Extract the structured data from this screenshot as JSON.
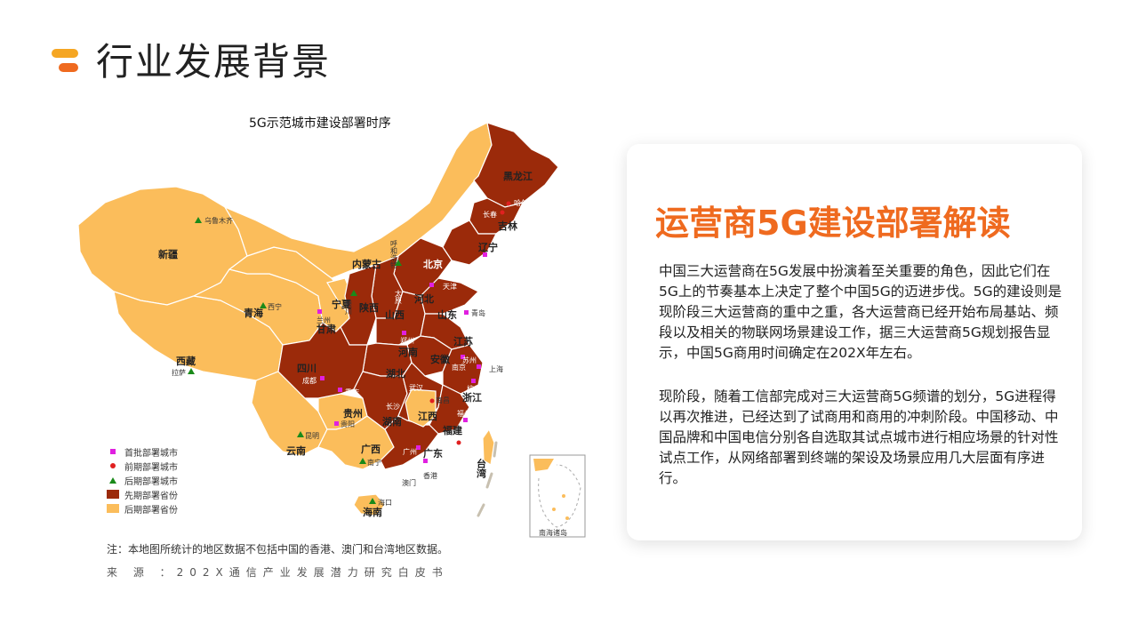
{
  "page": {
    "title": "行业发展背景"
  },
  "map": {
    "title": "5G示范城市建设部署时序",
    "colors": {
      "early_province": "#9b2a0a",
      "late_province": "#fbbd5b"
    },
    "provinces_early": [
      "黑龙江",
      "吉林",
      "辽宁",
      "北京",
      "天津",
      "河北",
      "山西",
      "陕西",
      "山东",
      "河南",
      "江苏",
      "安徽",
      "上海",
      "湖北",
      "四川",
      "重庆",
      "湖南",
      "江西",
      "浙江",
      "福建",
      "广东"
    ],
    "provinces_late": [
      "新疆",
      "西藏",
      "青海",
      "甘肃",
      "宁夏",
      "内蒙古",
      "贵州",
      "云南",
      "广西",
      "海南",
      "台湾"
    ],
    "labels": {
      "heilongjiang": "黑龙江",
      "jilin": "吉林",
      "liaoning": "辽宁",
      "beijing": "北京",
      "tianjin": "天津",
      "hebei": "河北",
      "shanxi": "山西",
      "shaanxi": "陕西",
      "shandong": "山东",
      "henan": "河南",
      "jiangsu": "江苏",
      "anhui": "安徽",
      "hubei": "湖北",
      "sichuan": "四川",
      "hunan": "湖南",
      "jiangxi": "江西",
      "zhejiang": "浙江",
      "fujian": "福建",
      "guangdong": "广东",
      "xinjiang": "新疆",
      "xizang": "西藏",
      "qinghai": "青海",
      "gansu": "甘肃",
      "ningxia": "宁夏",
      "neimenggu": "内蒙古",
      "guizhou": "贵州",
      "yunnan": "云南",
      "guangxi": "广西",
      "hainan": "海南",
      "taiwan": "台湾"
    },
    "cities": {
      "urumqi": "乌鲁木齐",
      "harbin": "哈尔滨",
      "changchun": "长春",
      "shenyang": "沈阳",
      "hohhot": "呼和浩特",
      "tianjin": "天津",
      "qingdao": "青岛",
      "xining": "西宁",
      "lanzhou": "兰州",
      "yinchuan": "银川",
      "taiyuan": "太原",
      "zhengzhou": "郑州",
      "hangzhou": "杭州",
      "shanghai": "上海",
      "suzhou": "苏州",
      "nanjing": "南京",
      "chengdu": "成都",
      "chongqing": "重庆",
      "wuhan": "武汉",
      "changsha": "长沙",
      "nanchang": "南昌",
      "fuzhou": "福州",
      "xiamen": "厦门",
      "guangzhou": "广州",
      "shenzhen": "深圳",
      "lhasa": "拉萨",
      "kunming": "昆明",
      "guiyang": "贵阳",
      "nanning": "南宁",
      "haikou": "海口",
      "hongkong": "香港",
      "macau": "澳门",
      "xian": "西安"
    },
    "inset_label": "南海诸岛",
    "legend": [
      {
        "symbol": "magenta-square-icon",
        "label": "首批部署城市",
        "color": "#e020e0"
      },
      {
        "symbol": "red-dot-icon",
        "label": "前期部署城市",
        "color": "#e02020"
      },
      {
        "symbol": "green-triangle-icon",
        "label": "后期部署城市",
        "color": "#1a8a1a"
      },
      {
        "symbol": "dark-swatch",
        "label": "先期部署省份",
        "color": "#9b2a0a"
      },
      {
        "symbol": "light-swatch",
        "label": "后期部署省份",
        "color": "#fbbd5b"
      }
    ],
    "note": "注：本地图所统计的地区数据不包括中国的香港、澳门和台湾地区数据。",
    "source": "来 源 ：202X通信产业发展潜力研究白皮书"
  },
  "card": {
    "title": "运营商5G建设部署解读",
    "paragraph1": "中国三大运营商在5G发展中扮演着至关重要的角色，因此它们在5G上的节奏基本上决定了整个中国5G的迈进步伐。5G的建设则是现阶段三大运营商的重中之重，各大运营商已经开始布局基站、频段以及相关的物联网场景建设工作，据三大运营商5G规划报告显示，中国5G商用时间确定在202X年左右。",
    "paragraph2": "现阶段，随着工信部完成对三大运营商5G频谱的划分，5G进程得以再次推进，已经达到了试商用和商用的冲刺阶段。中国移动、中国品牌和中国电信分别各自选取其试点城市进行相应场景的针对性试点工作，从网络部署到终端的架设及场景应用几大层面有序进行。"
  }
}
